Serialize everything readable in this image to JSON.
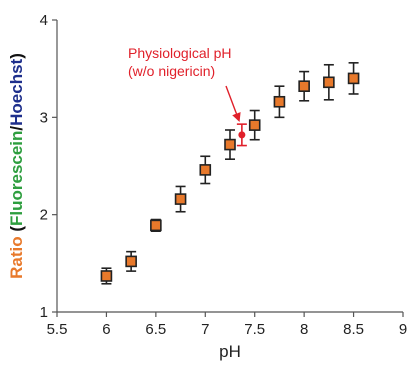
{
  "chart_data": {
    "type": "scatter",
    "xlabel": "pH",
    "ylabel_parts": [
      {
        "text": "Ratio",
        "color": "#E8792B"
      },
      {
        "text": " (",
        "color": "#111111"
      },
      {
        "text": "Fluorescein",
        "color": "#2E9E3F"
      },
      {
        "text": "/",
        "color": "#111111"
      },
      {
        "text": "Hoechst",
        "color": "#1E2F8C"
      },
      {
        "text": ")",
        "color": "#111111"
      }
    ],
    "xlim": [
      5.5,
      9
    ],
    "ylim": [
      1,
      4
    ],
    "xticks": [
      "5.5",
      "6",
      "6.5",
      "7",
      "7.5",
      "8",
      "8.5",
      "9"
    ],
    "yticks": [
      "1",
      "2",
      "3",
      "4"
    ],
    "grid": false,
    "series": [
      {
        "marker": "square",
        "color": "#E8792B",
        "points": [
          {
            "x": 6.0,
            "y": 1.37,
            "err": 0.08
          },
          {
            "x": 6.25,
            "y": 1.52,
            "err": 0.1
          },
          {
            "x": 6.5,
            "y": 1.89,
            "err": 0.06
          },
          {
            "x": 6.75,
            "y": 2.16,
            "err": 0.13
          },
          {
            "x": 7.0,
            "y": 2.46,
            "err": 0.14
          },
          {
            "x": 7.25,
            "y": 2.72,
            "err": 0.15
          },
          {
            "x": 7.5,
            "y": 2.92,
            "err": 0.15
          },
          {
            "x": 7.75,
            "y": 3.16,
            "err": 0.16
          },
          {
            "x": 8.0,
            "y": 3.32,
            "err": 0.15
          },
          {
            "x": 8.25,
            "y": 3.36,
            "err": 0.18
          },
          {
            "x": 8.5,
            "y": 3.4,
            "err": 0.16
          }
        ]
      },
      {
        "marker": "circle",
        "color": "#E0202A",
        "points": [
          {
            "x": 7.37,
            "y": 2.82,
            "err": 0.11
          }
        ]
      }
    ],
    "annotation": {
      "lines": [
        "Physiological pH",
        "(w/o nigericin)"
      ],
      "color": "#E0202A",
      "arrow_to": {
        "x": 7.37,
        "y": 2.93
      }
    }
  }
}
